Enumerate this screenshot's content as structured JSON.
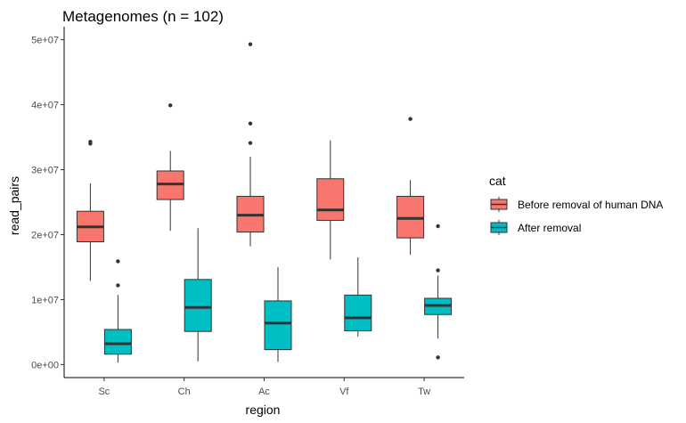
{
  "chart_data": {
    "type": "boxplot",
    "title": "Metagenomes (n = 102)",
    "xlabel": "region",
    "ylabel": "read_pairs",
    "categories": [
      "Sc",
      "Ch",
      "Ac",
      "Vf",
      "Tw"
    ],
    "ylim": [
      -2000000,
      52000000
    ],
    "y_ticks": [
      0,
      10000000,
      20000000,
      30000000,
      40000000,
      50000000
    ],
    "y_tick_labels": [
      "0e+00",
      "1e+07",
      "2e+07",
      "3e+07",
      "4e+07",
      "5e+07"
    ],
    "legend": {
      "title": "cat",
      "position": "right"
    },
    "grid": false,
    "series": [
      {
        "name": "Before removal of human DNA",
        "color": "#F8766D",
        "boxes": [
          {
            "min": 12900000,
            "q1": 18900000,
            "median": 21200000,
            "q3": 23600000,
            "max": 27900000,
            "outliers": [
              34000000,
              34300000
            ]
          },
          {
            "min": 20600000,
            "q1": 25400000,
            "median": 27800000,
            "q3": 29800000,
            "max": 32900000,
            "outliers": [
              39900000
            ]
          },
          {
            "min": 18200000,
            "q1": 20400000,
            "median": 23000000,
            "q3": 25900000,
            "max": 32000000,
            "outliers": [
              34100000,
              37100000,
              49300000
            ]
          },
          {
            "min": 16200000,
            "q1": 22200000,
            "median": 23800000,
            "q3": 28600000,
            "max": 34500000,
            "outliers": []
          },
          {
            "min": 16900000,
            "q1": 19500000,
            "median": 22500000,
            "q3": 25900000,
            "max": 28400000,
            "outliers": [
              37800000
            ]
          }
        ]
      },
      {
        "name": "After removal",
        "color": "#00BFC4",
        "boxes": [
          {
            "min": 300000,
            "q1": 1600000,
            "median": 3200000,
            "q3": 5400000,
            "max": 10700000,
            "outliers": [
              12200000,
              15900000
            ]
          },
          {
            "min": 500000,
            "q1": 5100000,
            "median": 8800000,
            "q3": 13100000,
            "max": 21000000,
            "outliers": []
          },
          {
            "min": 400000,
            "q1": 2300000,
            "median": 6400000,
            "q3": 9800000,
            "max": 15000000,
            "outliers": []
          },
          {
            "min": 4300000,
            "q1": 5200000,
            "median": 7200000,
            "q3": 10700000,
            "max": 16500000,
            "outliers": []
          },
          {
            "min": 4000000,
            "q1": 7700000,
            "median": 9100000,
            "q3": 10200000,
            "max": 13700000,
            "outliers": [
              1100000,
              14500000,
              21300000
            ]
          }
        ]
      }
    ]
  }
}
